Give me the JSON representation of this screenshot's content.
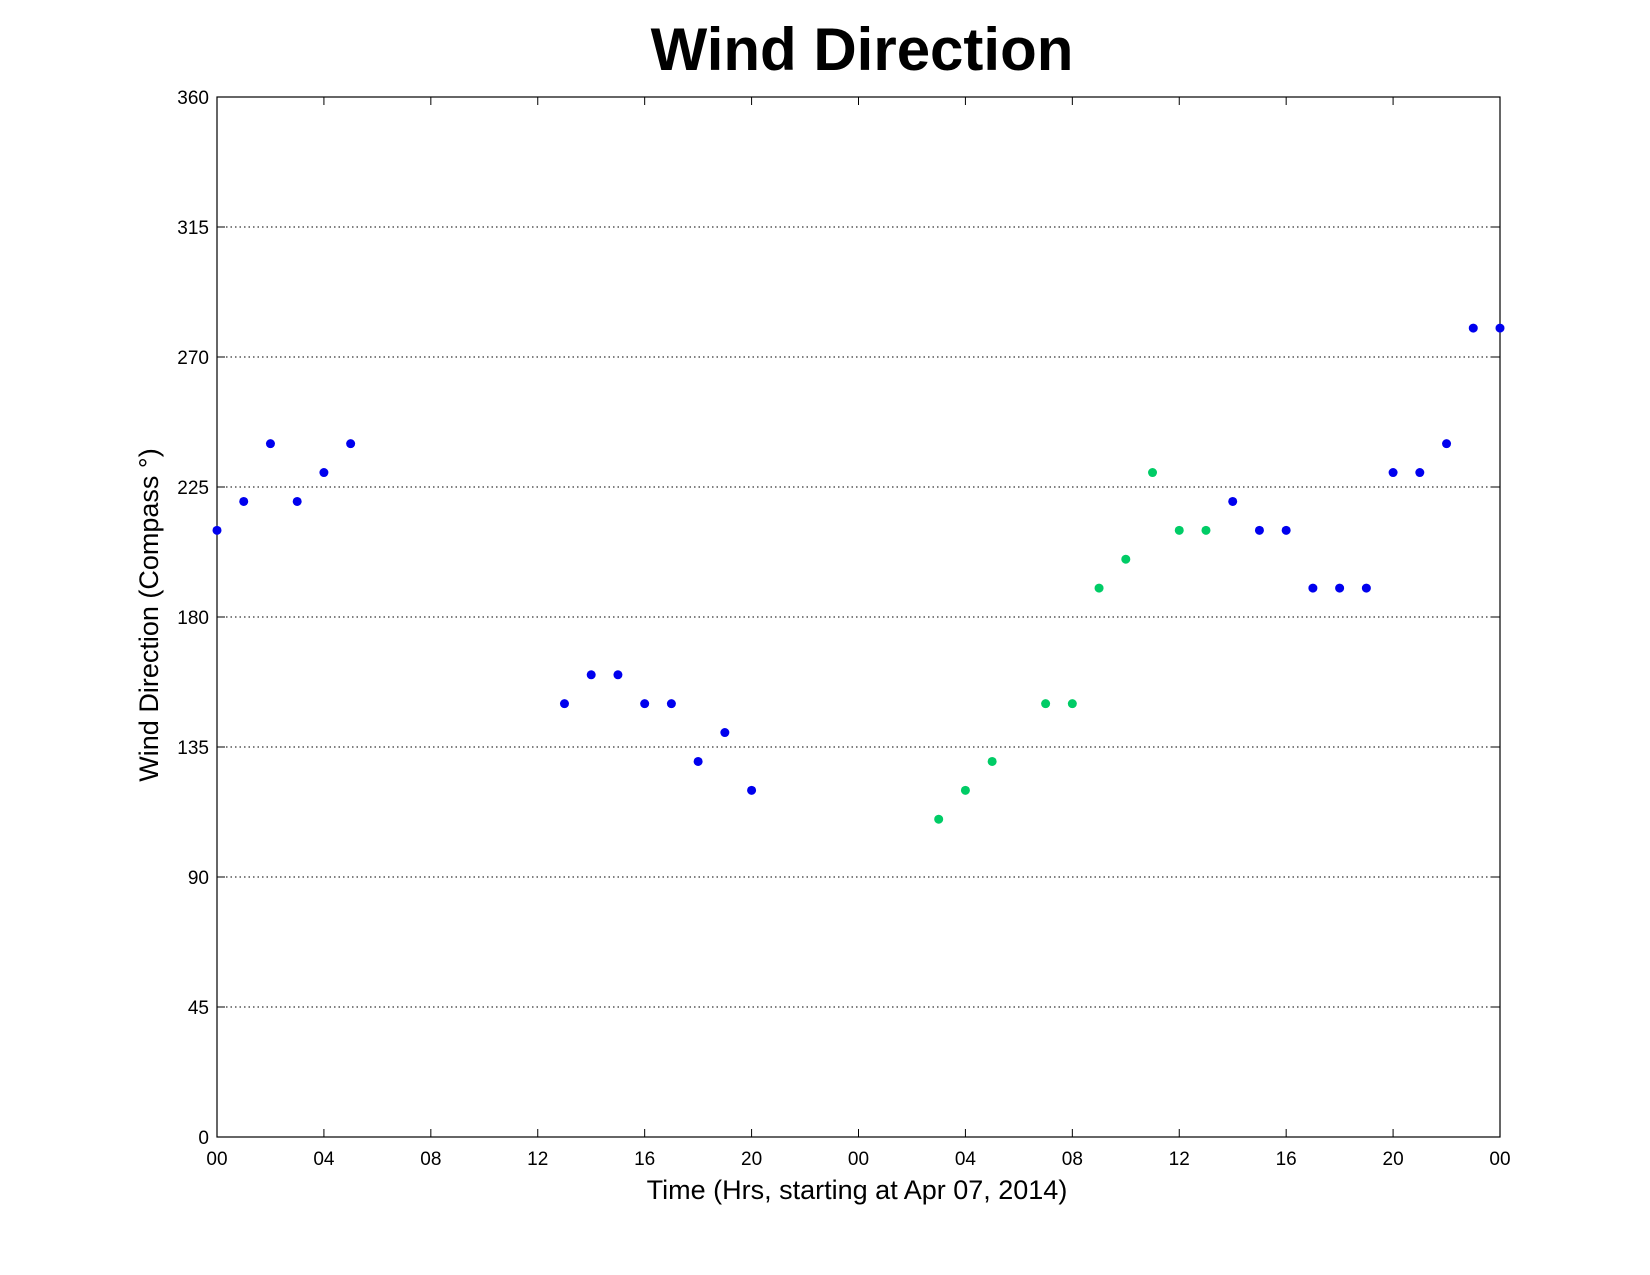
{
  "chart_data": {
    "type": "scatter",
    "title": "Wind Direction",
    "xlabel": "Time (Hrs, starting at Apr 07, 2014)",
    "ylabel": "Wind Direction (Compass  °)",
    "xlim": [
      0,
      48
    ],
    "ylim": [
      0,
      360
    ],
    "x_ticks": [
      0,
      4,
      8,
      12,
      16,
      20,
      24,
      28,
      32,
      36,
      40,
      44,
      48
    ],
    "x_tick_labels": [
      "00",
      "04",
      "08",
      "12",
      "16",
      "20",
      "00",
      "04",
      "08",
      "12",
      "16",
      "20",
      "00"
    ],
    "y_ticks": [
      0,
      45,
      90,
      135,
      180,
      225,
      270,
      315,
      360
    ],
    "y_tick_labels": [
      "0",
      "45",
      "90",
      "135",
      "180",
      "225",
      "270",
      "315",
      "360"
    ],
    "grid": "y-dotted",
    "series": [
      {
        "color": "#0000ee",
        "points": [
          [
            0,
            210
          ],
          [
            1,
            220
          ],
          [
            2,
            240
          ],
          [
            3,
            220
          ],
          [
            4,
            230
          ],
          [
            5,
            240
          ],
          [
            13,
            150
          ],
          [
            14,
            160
          ],
          [
            15,
            160
          ],
          [
            16,
            150
          ],
          [
            17,
            150
          ],
          [
            18,
            130
          ],
          [
            19,
            140
          ],
          [
            20,
            120
          ],
          [
            38,
            220
          ],
          [
            39,
            210
          ],
          [
            40,
            210
          ],
          [
            41,
            190
          ],
          [
            42,
            190
          ],
          [
            43,
            190
          ],
          [
            44,
            230
          ],
          [
            45,
            230
          ],
          [
            46,
            240
          ],
          [
            47,
            280
          ],
          [
            48,
            280
          ]
        ]
      },
      {
        "color": "#00cc66",
        "points": [
          [
            27,
            110
          ],
          [
            28,
            120
          ],
          [
            29,
            130
          ],
          [
            31,
            150
          ],
          [
            32,
            150
          ],
          [
            33,
            190
          ],
          [
            34,
            200
          ],
          [
            35,
            230
          ],
          [
            36,
            210
          ],
          [
            37,
            210
          ]
        ]
      }
    ]
  }
}
